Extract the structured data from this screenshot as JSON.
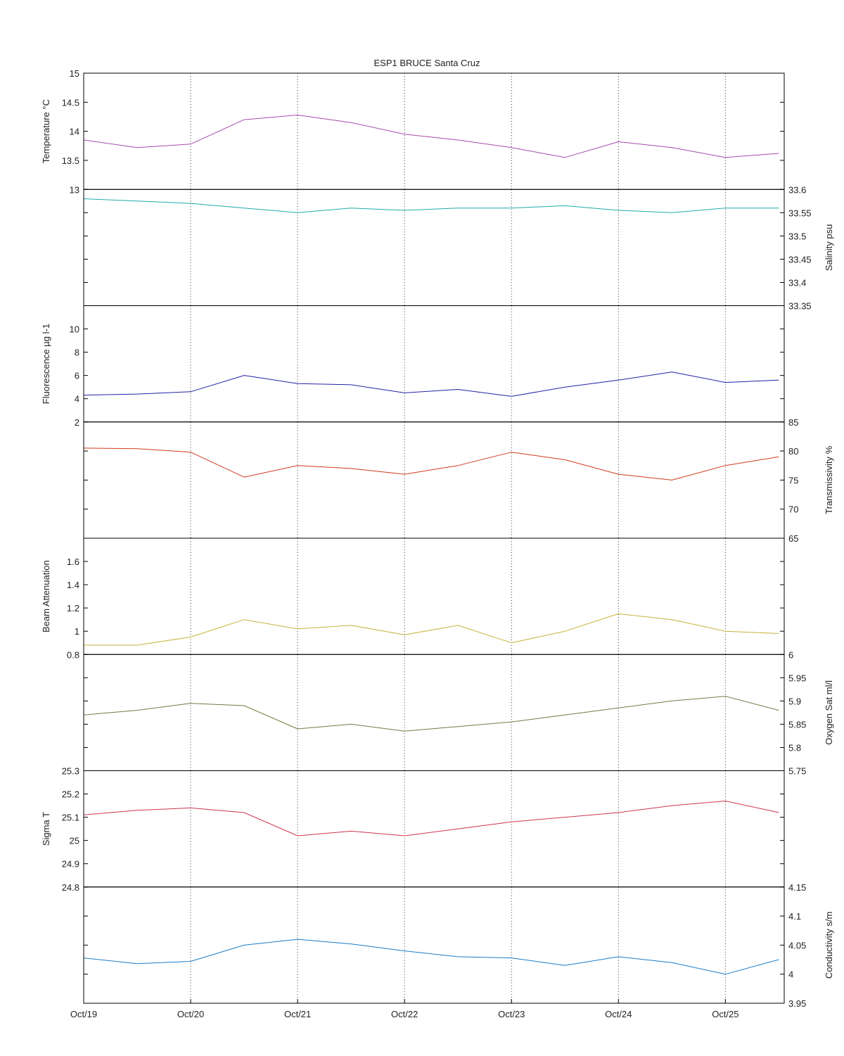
{
  "chart_data": {
    "type": "line",
    "title": "ESP1 BRUCE Santa Cruz",
    "x_tick_labels": [
      "Oct/19",
      "Oct/20",
      "Oct/21",
      "Oct/22",
      "Oct/23",
      "Oct/24",
      "Oct/25"
    ],
    "x": [
      0.0,
      0.5,
      1.0,
      1.5,
      2.0,
      2.5,
      3.0,
      3.5,
      4.0,
      4.5,
      5.0,
      5.5,
      6.0,
      6.5
    ],
    "xlim": [
      0,
      6.55
    ],
    "grid": "vertical dotted at day ticks",
    "panels": [
      {
        "ylabel": "Temperature °C",
        "axis_side": "left",
        "ylim": [
          13,
          15
        ],
        "yticks": [
          13,
          13.5,
          14,
          14.5,
          15
        ],
        "color": "#a74aae",
        "values": [
          13.85,
          13.72,
          13.78,
          14.2,
          14.28,
          14.15,
          13.95,
          13.85,
          13.72,
          13.55,
          13.82,
          13.72,
          13.55,
          13.62
        ]
      },
      {
        "ylabel": "Salinity psu",
        "axis_side": "right",
        "ylim": [
          33.35,
          33.6
        ],
        "yticks": [
          33.35,
          33.4,
          33.45,
          33.5,
          33.55,
          33.6
        ],
        "color": "#22aaaa",
        "values": [
          33.58,
          33.575,
          33.57,
          33.56,
          33.55,
          33.56,
          33.555,
          33.56,
          33.56,
          33.565,
          33.555,
          33.55,
          33.56,
          33.56
        ]
      },
      {
        "ylabel": "Fluorescence µg l-1",
        "axis_side": "left",
        "ylim": [
          2,
          12
        ],
        "yticks": [
          2,
          4,
          6,
          8,
          10
        ],
        "color": "#2222a8",
        "values": [
          4.3,
          4.4,
          4.6,
          6.0,
          5.3,
          5.2,
          4.5,
          4.8,
          4.2,
          5.0,
          5.6,
          6.3,
          5.4,
          5.6
        ]
      },
      {
        "ylabel": "Transmissivity %",
        "axis_side": "right",
        "ylim": [
          65,
          85
        ],
        "yticks": [
          65,
          70,
          75,
          80,
          85
        ],
        "color": "#d23a1d",
        "values": [
          80.5,
          80.4,
          79.8,
          75.5,
          77.5,
          77.0,
          76.0,
          77.5,
          79.8,
          78.5,
          76.0,
          75.0,
          77.5,
          79.0
        ]
      },
      {
        "ylabel": "Beam Attenuation",
        "axis_side": "left",
        "ylim": [
          0.8,
          1.8
        ],
        "yticks": [
          0.8,
          1,
          1.2,
          1.4,
          1.6
        ],
        "color": "#c8b23a",
        "values": [
          0.88,
          0.88,
          0.95,
          1.1,
          1.02,
          1.05,
          0.97,
          1.05,
          0.9,
          1.0,
          1.15,
          1.1,
          1.0,
          0.98
        ]
      },
      {
        "ylabel": "Oxygen Sat ml/l",
        "axis_side": "right",
        "ylim": [
          5.75,
          6
        ],
        "yticks": [
          5.75,
          5.8,
          5.85,
          5.9,
          5.95,
          6
        ],
        "color": "#787844",
        "values": [
          5.87,
          5.88,
          5.895,
          5.89,
          5.84,
          5.85,
          5.835,
          5.845,
          5.855,
          5.87,
          5.885,
          5.9,
          5.91,
          5.88
        ]
      },
      {
        "ylabel": "Sigma T",
        "axis_side": "left",
        "ylim": [
          24.8,
          25.3
        ],
        "yticks": [
          24.8,
          24.9,
          25,
          25.1,
          25.2,
          25.3
        ],
        "color": "#d03551",
        "values": [
          25.11,
          25.13,
          25.14,
          25.12,
          25.02,
          25.04,
          25.02,
          25.05,
          25.08,
          25.1,
          25.12,
          25.15,
          25.17,
          25.12
        ]
      },
      {
        "ylabel": "Conductivity s/m",
        "axis_side": "right",
        "ylim": [
          3.95,
          4.15
        ],
        "yticks": [
          3.95,
          4,
          4.05,
          4.1,
          4.15
        ],
        "color": "#1a7cc9",
        "values": [
          4.028,
          4.018,
          4.022,
          4.05,
          4.06,
          4.052,
          4.04,
          4.03,
          4.028,
          4.015,
          4.03,
          4.02,
          4.0,
          4.025
        ]
      }
    ]
  }
}
